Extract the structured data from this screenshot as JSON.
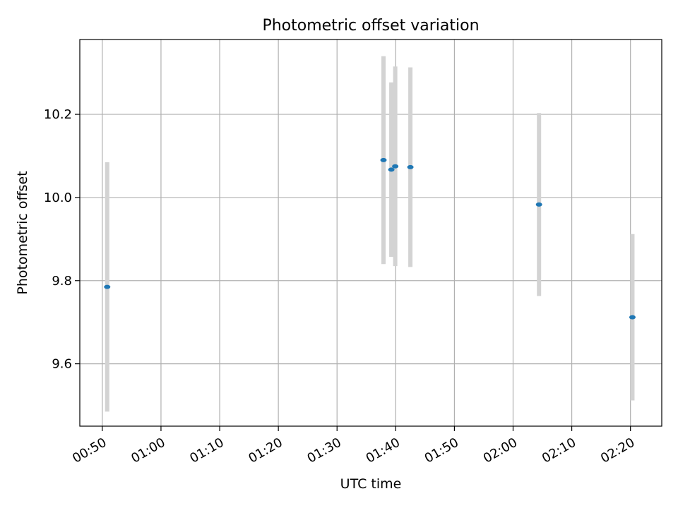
{
  "chart_data": {
    "type": "scatter",
    "title": "Photometric offset variation",
    "xlabel": "UTC time",
    "ylabel": "Photometric offset",
    "x_unit": "time of day (HH:MM)",
    "xlim": [
      "00:46:10",
      "02:25:20"
    ],
    "ylim": [
      9.45,
      10.38
    ],
    "x_ticks": [
      "00:50",
      "01:00",
      "01:10",
      "01:20",
      "01:30",
      "01:40",
      "01:50",
      "02:00",
      "02:10",
      "02:20"
    ],
    "y_ticks": [
      9.6,
      9.8,
      10.0,
      10.2
    ],
    "grid": true,
    "point_color": "#1f77b4",
    "errorbar_color": "#d3d3d3",
    "points": [
      {
        "time": "00:50:50",
        "y": 9.785,
        "yerr": 0.3
      },
      {
        "time": "01:37:55",
        "y": 10.09,
        "yerr": 0.25
      },
      {
        "time": "01:39:15",
        "y": 10.067,
        "yerr": 0.21
      },
      {
        "time": "01:39:55",
        "y": 10.075,
        "yerr": 0.24
      },
      {
        "time": "01:42:30",
        "y": 10.073,
        "yerr": 0.24
      },
      {
        "time": "02:04:25",
        "y": 9.983,
        "yerr": 0.22
      },
      {
        "time": "02:20:20",
        "y": 9.712,
        "yerr": 0.2
      }
    ]
  }
}
